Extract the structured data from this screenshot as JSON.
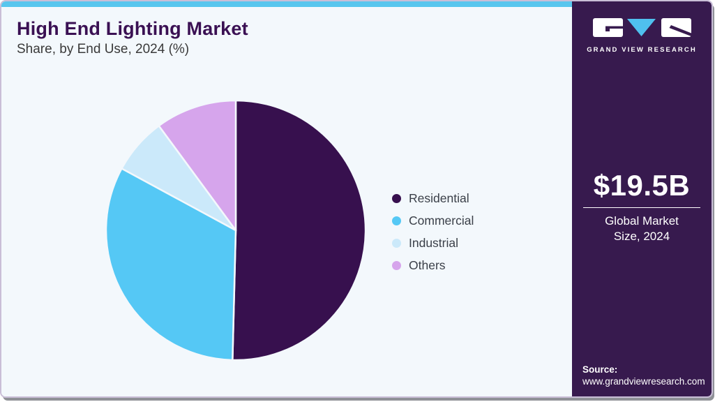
{
  "header": {
    "title": "High End Lighting Market",
    "subtitle": "Share, by End Use, 2024 (%)"
  },
  "chart_data": {
    "type": "pie",
    "title": "High End Lighting Market Share, by End Use, 2024 (%)",
    "categories": [
      "Residential",
      "Commercial",
      "Industrial",
      "Others"
    ],
    "values": [
      50.4,
      32.5,
      7.0,
      10.1
    ],
    "unit": "%",
    "colors": [
      "#37104E",
      "#55C8F5",
      "#CBE9FA",
      "#D6A5EC"
    ],
    "legend_position": "right",
    "data_labels": false,
    "slice_gap_color": "#F3F8FC"
  },
  "sidebar": {
    "logo_text": "GRAND VIEW RESEARCH",
    "market_size_value": "$19.5B",
    "market_size_label": "Global Market Size, 2024",
    "source_label": "Source:",
    "source_url": "www.grandviewresearch.com",
    "background": "#371A4E"
  },
  "theme": {
    "accent_cyan": "#58C6EE",
    "card_background": "#F3F8FC",
    "title_color": "#3A1053",
    "text_color": "#3A3F48",
    "border_color": "#C9BED7",
    "shadow_color": "#8F9197"
  }
}
